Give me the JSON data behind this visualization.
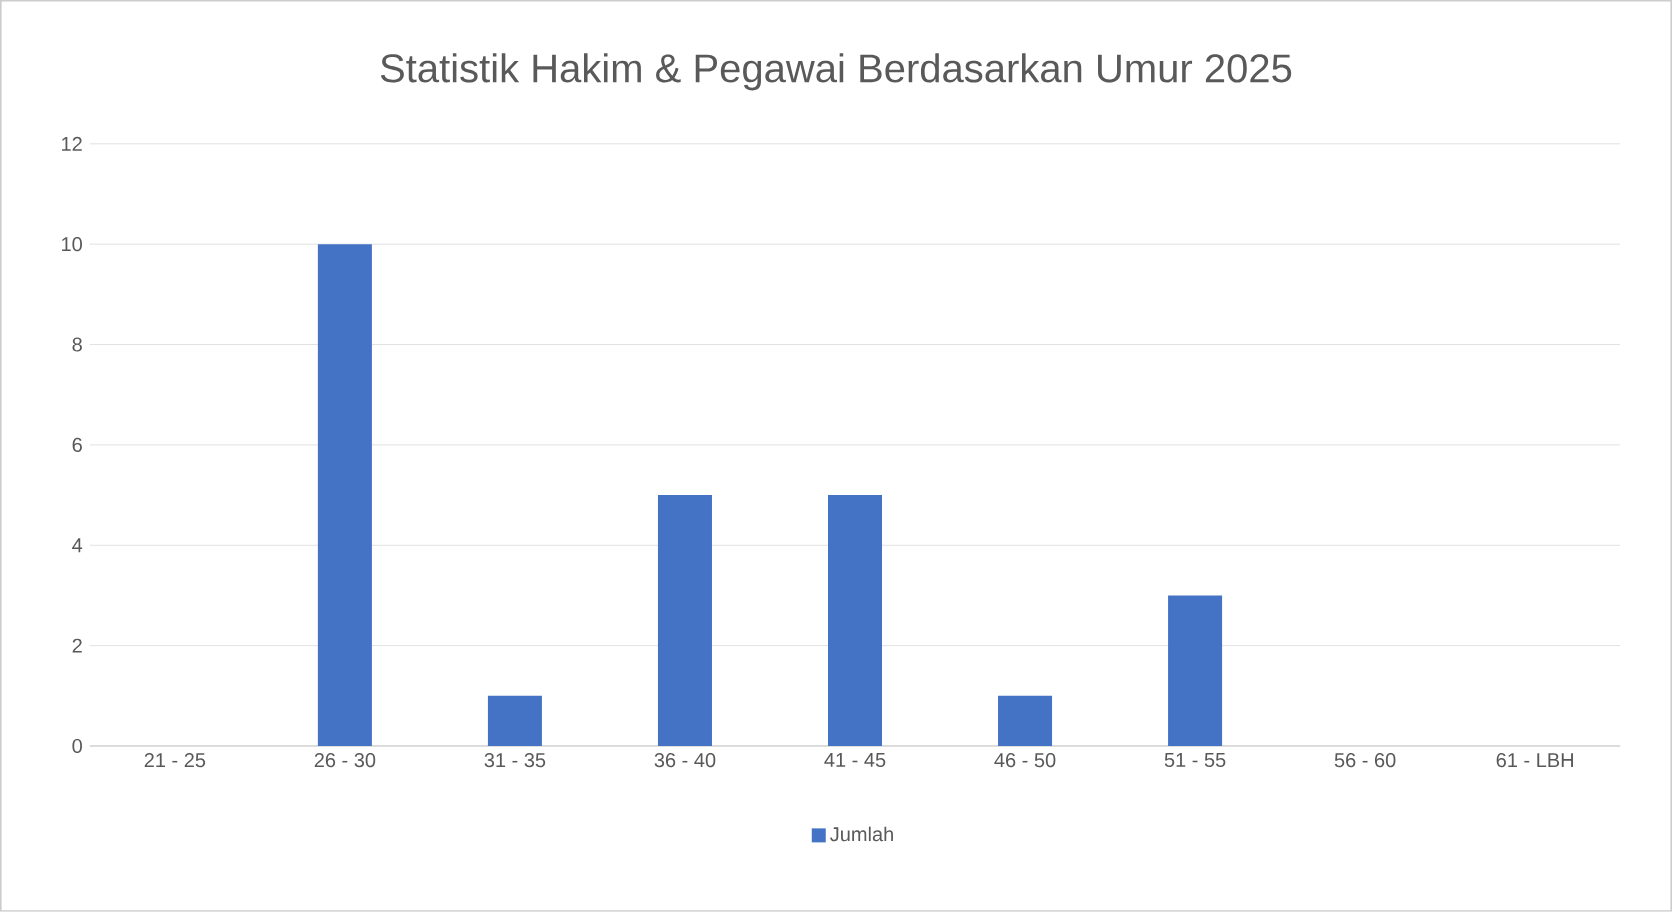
{
  "chart_data": {
    "type": "bar",
    "title": "Statistik Hakim & Pegawai Berdasarkan Umur 2025",
    "categories": [
      "21 - 25",
      "26 - 30",
      "31 - 35",
      "36 - 40",
      "41 - 45",
      "46 - 50",
      "51 - 55",
      "56 - 60",
      "61 - LBH"
    ],
    "series": [
      {
        "name": "Jumlah",
        "color": "#4472c4",
        "values": [
          0,
          10,
          1,
          5,
          5,
          1,
          3,
          0,
          0
        ]
      }
    ],
    "ylim": [
      0,
      12
    ],
    "yticks": [
      0,
      2,
      4,
      6,
      8,
      10,
      12
    ],
    "grid": "y",
    "legend": "bottom"
  }
}
